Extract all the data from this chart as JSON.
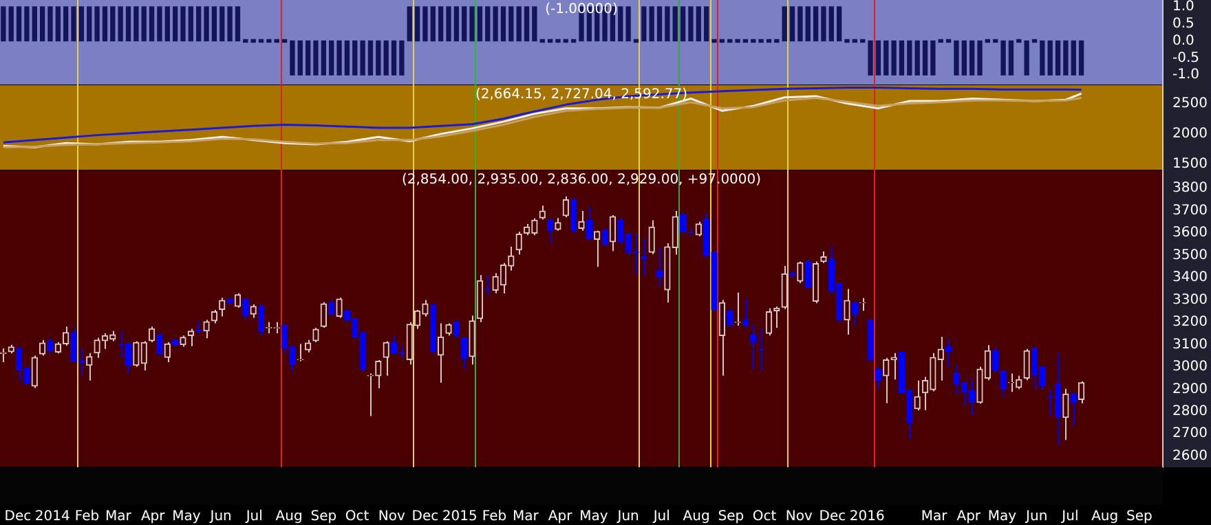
{
  "chart_data": [
    {
      "type": "bar",
      "title": "(-1.00000)",
      "color": "#14145a",
      "tick_labels": "y",
      "x": [
        "2013-11-18",
        "2013-11-25",
        "2013-12-02",
        "2013-12-09",
        "2013-12-16",
        "2013-12-23",
        "2013-12-30",
        "2014-01-06",
        "2014-01-13",
        "2014-01-20",
        "2014-01-27",
        "2014-02-03",
        "2014-02-10",
        "2014-02-17",
        "2014-02-24",
        "2014-03-03",
        "2014-03-10",
        "2014-03-17",
        "2014-03-24",
        "2014-03-31",
        "2014-04-07",
        "2014-04-14",
        "2014-04-21",
        "2014-04-28",
        "2014-05-05",
        "2014-05-12",
        "2014-05-19",
        "2014-05-26",
        "2014-06-02",
        "2014-06-09",
        "2014-06-16",
        "2014-06-23",
        "2014-06-30",
        "2014-07-07",
        "2014-07-14",
        "2014-07-21",
        "2014-07-28",
        "2014-08-04",
        "2014-08-11",
        "2014-08-18",
        "2014-08-25",
        "2014-09-01",
        "2014-09-08",
        "2014-09-15",
        "2014-09-22",
        "2014-09-29",
        "2014-10-06",
        "2014-10-13",
        "2014-10-20",
        "2014-10-27",
        "2014-11-03",
        "2014-11-10",
        "2014-11-17",
        "2014-11-24",
        "2014-12-01",
        "2014-12-08",
        "2014-12-15",
        "2014-12-22",
        "2014-12-29",
        "2015-01-05",
        "2015-01-12",
        "2015-01-19",
        "2015-01-26",
        "2015-02-02",
        "2015-02-09",
        "2015-02-16",
        "2015-02-23",
        "2015-03-02",
        "2015-03-09",
        "2015-03-16",
        "2015-03-23",
        "2015-03-30",
        "2015-04-06",
        "2015-04-13",
        "2015-04-20",
        "2015-04-27",
        "2015-05-04",
        "2015-05-11",
        "2015-05-18",
        "2015-05-25",
        "2015-06-01",
        "2015-06-08",
        "2015-06-15",
        "2015-06-22",
        "2015-06-29",
        "2015-07-06",
        "2015-07-13",
        "2015-07-20",
        "2015-07-27",
        "2015-08-03",
        "2015-08-10",
        "2015-08-17",
        "2015-08-24",
        "2015-08-31",
        "2015-09-07",
        "2015-09-14",
        "2015-09-21",
        "2015-09-28",
        "2015-10-05",
        "2015-10-12",
        "2015-10-19",
        "2015-10-26",
        "2015-11-02",
        "2015-11-09",
        "2015-11-16",
        "2015-11-23",
        "2015-11-30",
        "2015-12-07",
        "2015-12-14",
        "2015-12-21",
        "2015-12-28",
        "2016-01-04",
        "2016-01-11",
        "2016-01-18",
        "2016-01-25",
        "2016-02-01",
        "2016-02-08",
        "2016-02-15",
        "2016-02-22",
        "2016-02-29",
        "2016-03-07",
        "2016-03-14",
        "2016-03-21",
        "2016-03-28",
        "2016-04-04",
        "2016-04-11",
        "2016-04-18",
        "2016-04-25",
        "2016-05-02",
        "2016-05-09",
        "2016-05-16",
        "2016-05-23",
        "2016-05-30",
        "2016-06-06",
        "2016-06-13",
        "2016-06-20",
        "2016-06-27",
        "2016-07-04",
        "2016-07-11"
      ],
      "values": [
        1,
        1,
        1,
        1,
        1,
        1,
        1,
        1,
        1,
        1,
        1,
        1,
        1,
        1,
        1,
        1,
        1,
        1,
        1,
        1,
        1,
        1,
        1,
        1,
        1,
        1,
        1,
        1,
        1,
        1,
        1,
        0,
        0,
        0,
        0,
        0,
        0,
        -1,
        -1,
        -1,
        -1,
        -1,
        -1,
        -1,
        -1,
        -1,
        -1,
        -1,
        -1,
        -1,
        -1,
        -1,
        1,
        1,
        1,
        1,
        1,
        1,
        1,
        1,
        1,
        1,
        1,
        1,
        1,
        1,
        1,
        1,
        1,
        0,
        0,
        0,
        0,
        0,
        1,
        1,
        1,
        1,
        1,
        1,
        1,
        0,
        1,
        1,
        1,
        1,
        1,
        1,
        1,
        1,
        1,
        0,
        0,
        0,
        0,
        0,
        0,
        0,
        0,
        0,
        1,
        1,
        1,
        1,
        1,
        1,
        1,
        1,
        0,
        0,
        0,
        -1,
        -1,
        -1,
        -1,
        -1,
        -1,
        -1,
        -1,
        -1,
        0,
        0,
        -1,
        -1,
        -1,
        -1,
        0,
        0,
        -1,
        -1,
        0,
        -1,
        0,
        -1,
        -1,
        -1,
        -1,
        -1,
        -1
      ],
      "xlim": [
        "2013-11-15",
        "2016-09-22"
      ],
      "ylim": [
        -1.3,
        1.2
      ],
      "yticks": [
        {
          "value": 1,
          "label": "1.0"
        },
        {
          "value": 0.5,
          "label": "0.5"
        },
        {
          "value": 0,
          "label": "0.0"
        },
        {
          "value": -0.5,
          "label": "-0.5"
        },
        {
          "value": -1,
          "label": "-1.0"
        }
      ],
      "ref_lines": [
        {
          "axis": "x",
          "value": "2014-01-23",
          "color": "#e8d040"
        },
        {
          "axis": "x",
          "value": "2014-07-25",
          "color": "#e02020"
        },
        {
          "axis": "x",
          "value": "2014-11-20",
          "color": "#e8d040"
        },
        {
          "axis": "x",
          "value": "2015-01-15",
          "color": "#20c020"
        },
        {
          "axis": "x",
          "value": "2015-06-10",
          "color": "#e8d040"
        },
        {
          "axis": "x",
          "value": "2015-07-16",
          "color": "#40a040"
        },
        {
          "axis": "x",
          "value": "2015-08-13",
          "color": "#e8d040"
        },
        {
          "axis": "x",
          "value": "2015-08-19",
          "color": "#e02020"
        },
        {
          "axis": "x",
          "value": "2015-10-21",
          "color": "#e8d040"
        },
        {
          "axis": "x",
          "value": "2016-01-07",
          "color": "#e02020"
        }
      ]
    },
    {
      "type": "line",
      "title": "(2,664.15, 2,727.04, 2,592.77)",
      "tick_labels": "y",
      "x": [
        "2013-11-18",
        "2013-12-16",
        "2014-01-13",
        "2014-02-10",
        "2014-03-10",
        "2014-04-07",
        "2014-05-05",
        "2014-06-02",
        "2014-06-30",
        "2014-07-28",
        "2014-08-25",
        "2014-09-22",
        "2014-10-20",
        "2014-11-17",
        "2014-12-15",
        "2015-01-12",
        "2015-02-09",
        "2015-03-09",
        "2015-04-06",
        "2015-05-04",
        "2015-06-01",
        "2015-06-29",
        "2015-07-27",
        "2015-08-24",
        "2015-09-21",
        "2015-10-19",
        "2015-11-16",
        "2015-12-14",
        "2016-01-11",
        "2016-02-08",
        "2016-03-07",
        "2016-04-04",
        "2016-05-02",
        "2016-05-30",
        "2016-06-27",
        "2016-07-11"
      ],
      "series": [
        {
          "color": "#c8a060",
          "values": [
            1780,
            1790,
            1820,
            1830,
            1850,
            1860,
            1880,
            1920,
            1910,
            1870,
            1840,
            1850,
            1900,
            1900,
            1960,
            2050,
            2150,
            2280,
            2380,
            2410,
            2430,
            2430,
            2520,
            2420,
            2440,
            2550,
            2590,
            2530,
            2460,
            2500,
            2520,
            2550,
            2550,
            2540,
            2550,
            2592
          ]
        },
        {
          "color": "#f0f0f0",
          "values": [
            1800,
            1780,
            1850,
            1830,
            1870,
            1870,
            1900,
            1950,
            1900,
            1850,
            1830,
            1870,
            1950,
            1880,
            2000,
            2090,
            2200,
            2330,
            2420,
            2420,
            2440,
            2430,
            2580,
            2380,
            2460,
            2600,
            2620,
            2500,
            2420,
            2540,
            2540,
            2580,
            2560,
            2540,
            2560,
            2664
          ]
        },
        {
          "color": "#1a1adc",
          "values": [
            1860,
            1900,
            1940,
            1980,
            2010,
            2040,
            2070,
            2100,
            2130,
            2150,
            2140,
            2120,
            2100,
            2100,
            2130,
            2160,
            2250,
            2370,
            2480,
            2560,
            2620,
            2650,
            2680,
            2700,
            2720,
            2740,
            2750,
            2760,
            2760,
            2750,
            2740,
            2740,
            2730,
            2730,
            2730,
            2727
          ]
        }
      ],
      "xlim": [
        "2013-11-15",
        "2016-09-22"
      ],
      "ylim": [
        1400,
        2800
      ],
      "yticks": [
        1500,
        2000,
        2500
      ],
      "ref_lines": [
        {
          "axis": "x",
          "value": "2014-01-23",
          "color": "#e8d040"
        },
        {
          "axis": "x",
          "value": "2014-07-25",
          "color": "#e02020"
        },
        {
          "axis": "x",
          "value": "2014-11-20",
          "color": "#e8d040"
        },
        {
          "axis": "x",
          "value": "2015-01-15",
          "color": "#20c020"
        },
        {
          "axis": "x",
          "value": "2015-06-10",
          "color": "#e8d040"
        },
        {
          "axis": "x",
          "value": "2015-07-16",
          "color": "#40a040"
        },
        {
          "axis": "x",
          "value": "2015-08-13",
          "color": "#e8d040"
        },
        {
          "axis": "x",
          "value": "2015-08-19",
          "color": "#e02020"
        },
        {
          "axis": "x",
          "value": "2015-10-21",
          "color": "#e8d040"
        },
        {
          "axis": "x",
          "value": "2016-01-07",
          "color": "#e02020"
        }
      ]
    },
    {
      "type": "candlestick",
      "title": "(2,854.00, 2,935.00, 2,836.00, 2,929.00, +97.0000)",
      "colors": [
        "#d8c8c8",
        "#d8c8c8",
        "#0000ff",
        "#0000ff",
        "#d8c8c8",
        "#d8c8c8",
        "#0000ff",
        "#d8c8c8",
        "#d8c8c8",
        "#0000ff",
        "#0000ff",
        "#d8c8c8",
        "#d8c8c8",
        "#d8c8c8",
        "#d8c8c8",
        "#0000ff",
        "#0000ff",
        "#d8c8c8",
        "#d8c8c8",
        "#d8c8c8",
        "#0000ff",
        "#d8c8c8",
        "#0000ff",
        "#d8c8c8",
        "#d8c8c8",
        "#0000ff",
        "#d8c8c8",
        "#d8c8c8",
        "#d8c8c8",
        "#0000ff",
        "#d8c8c8",
        "#0000ff",
        "#d8c8c8",
        "#0000ff",
        "#d8c8c8",
        "#d8c8c8",
        "#0000ff",
        "#0000ff",
        "#d8c8c8",
        "#d8c8c8",
        "#d8c8c8",
        "#d8c8c8",
        "#0000ff",
        "#d8c8c8",
        "#0000ff",
        "#0000ff",
        "#0000ff",
        "#d8c8c8",
        "#d8c8c8",
        "#d8c8c8",
        "#0000ff",
        "#0000ff",
        "#d8c8c8",
        "#d8c8c8",
        "#d8c8c8",
        "#0000ff",
        "#d8c8c8",
        "#d8c8c8",
        "#0000ff",
        "#0000ff",
        "#d8c8c8",
        "#d8c8c8",
        "#0000ff",
        "#d8c8c8",
        "#d8c8c8",
        "#d8c8c8",
        "#d8c8c8",
        "#d8c8c8",
        "#d8c8c8",
        "#d8c8c8",
        "#0000ff",
        "#d8c8c8",
        "#d8c8c8",
        "#0000ff",
        "#d8c8c8",
        "#0000ff",
        "#d8c8c8",
        "#0000ff",
        "#d8c8c8",
        "#0000ff",
        "#0000ff",
        "#0000ff",
        "#0000ff",
        "#d8c8c8",
        "#0000ff",
        "#d8c8c8",
        "#d8c8c8",
        "#0000ff",
        "#0000ff",
        "#d8c8c8",
        "#0000ff",
        "#0000ff",
        "#d8c8c8",
        "#0000ff",
        "#d8c8c8",
        "#0000ff",
        "#0000ff",
        "#0000ff",
        "#d8c8c8",
        "#d8c8c8",
        "#d8c8c8",
        "#0000ff",
        "#d8c8c8",
        "#0000ff",
        "#d8c8c8",
        "#d8c8c8",
        "#0000ff",
        "#0000ff",
        "#d8c8c8",
        "#0000ff",
        "#d8c8c8",
        "#0000ff",
        "#0000ff",
        "#d8c8c8",
        "#d8c8c8",
        "#0000ff",
        "#0000ff",
        "#d8c8c8",
        "#d8c8c8",
        "#d8c8c8",
        "#d8c8c8",
        "#0000ff",
        "#0000ff",
        "#0000ff",
        "#0000ff",
        "#d8c8c8",
        "#d8c8c8",
        "#0000ff",
        "#0000ff",
        "#d8c8c8",
        "#d8c8c8",
        "#d8c8c8",
        "#0000ff",
        "#0000ff",
        "#0000ff",
        "#0000ff",
        "#d8c8c8",
        "#0000ff",
        "#d8c8c8"
      ],
      "x": [
        "2013-11-18",
        "2013-11-25",
        "2013-12-02",
        "2013-12-09",
        "2013-12-16",
        "2013-12-23",
        "2013-12-30",
        "2014-01-06",
        "2014-01-13",
        "2014-01-20",
        "2014-01-27",
        "2014-02-03",
        "2014-02-10",
        "2014-02-17",
        "2014-02-24",
        "2014-03-03",
        "2014-03-10",
        "2014-03-17",
        "2014-03-24",
        "2014-03-31",
        "2014-04-07",
        "2014-04-14",
        "2014-04-21",
        "2014-04-28",
        "2014-05-05",
        "2014-05-12",
        "2014-05-19",
        "2014-05-26",
        "2014-06-02",
        "2014-06-09",
        "2014-06-16",
        "2014-06-23",
        "2014-06-30",
        "2014-07-07",
        "2014-07-14",
        "2014-07-21",
        "2014-07-28",
        "2014-08-04",
        "2014-08-11",
        "2014-08-18",
        "2014-08-25",
        "2014-09-01",
        "2014-09-08",
        "2014-09-15",
        "2014-09-22",
        "2014-09-29",
        "2014-10-06",
        "2014-10-13",
        "2014-10-20",
        "2014-10-27",
        "2014-11-03",
        "2014-11-10",
        "2014-11-17",
        "2014-11-24",
        "2014-12-01",
        "2014-12-08",
        "2014-12-15",
        "2014-12-22",
        "2014-12-29",
        "2015-01-05",
        "2015-01-12",
        "2015-01-19",
        "2015-01-26",
        "2015-02-02",
        "2015-02-09",
        "2015-02-16",
        "2015-02-23",
        "2015-03-02",
        "2015-03-09",
        "2015-03-16",
        "2015-03-23",
        "2015-03-30",
        "2015-04-06",
        "2015-04-13",
        "2015-04-20",
        "2015-04-27",
        "2015-05-04",
        "2015-05-11",
        "2015-05-18",
        "2015-05-25",
        "2015-06-01",
        "2015-06-08",
        "2015-06-15",
        "2015-06-22",
        "2015-06-29",
        "2015-07-06",
        "2015-07-13",
        "2015-07-20",
        "2015-07-27",
        "2015-08-03",
        "2015-08-10",
        "2015-08-17",
        "2015-08-24",
        "2015-08-31",
        "2015-09-07",
        "2015-09-14",
        "2015-09-21",
        "2015-09-28",
        "2015-10-05",
        "2015-10-12",
        "2015-10-19",
        "2015-10-26",
        "2015-11-02",
        "2015-11-09",
        "2015-11-16",
        "2015-11-23",
        "2015-11-30",
        "2015-12-07",
        "2015-12-14",
        "2015-12-21",
        "2015-12-28",
        "2016-01-04",
        "2016-01-11",
        "2016-01-18",
        "2016-01-25",
        "2016-02-01",
        "2016-02-08",
        "2016-02-15",
        "2016-02-22",
        "2016-02-29",
        "2016-03-07",
        "2016-03-14",
        "2016-03-21",
        "2016-03-28",
        "2016-04-04",
        "2016-04-11",
        "2016-04-18",
        "2016-04-25",
        "2016-05-02",
        "2016-05-09",
        "2016-05-16",
        "2016-05-23",
        "2016-05-30",
        "2016-06-06",
        "2016-06-13",
        "2016-06-20",
        "2016-06-27",
        "2016-07-04",
        "2016-07-11"
      ],
      "ohlc": [
        [
          3060,
          3083,
          3021,
          3064
        ],
        [
          3068,
          3099,
          3060,
          3089
        ],
        [
          3083,
          3090,
          2939,
          2986
        ],
        [
          2996,
          3000,
          2920,
          2925
        ],
        [
          2914,
          3050,
          2905,
          3042
        ],
        [
          3058,
          3120,
          3050,
          3107
        ],
        [
          3117,
          3125,
          3060,
          3072
        ],
        [
          3066,
          3110,
          3060,
          3103
        ],
        [
          3103,
          3180,
          3095,
          3154
        ],
        [
          3154,
          3180,
          3020,
          3025
        ],
        [
          3025,
          3083,
          2965,
          3020
        ],
        [
          3007,
          3062,
          2939,
          3046
        ],
        [
          3062,
          3130,
          3040,
          3120
        ],
        [
          3117,
          3150,
          3080,
          3140
        ],
        [
          3124,
          3160,
          3115,
          3144
        ],
        [
          3100,
          3160,
          3040,
          3097
        ],
        [
          3103,
          3110,
          2970,
          3007
        ],
        [
          3007,
          3115,
          3000,
          3109
        ],
        [
          3015,
          3115,
          2984,
          3109
        ],
        [
          3117,
          3180,
          3110,
          3171
        ],
        [
          3144,
          3150,
          3050,
          3060
        ],
        [
          3042,
          3110,
          3021,
          3103
        ],
        [
          3120,
          3125,
          3090,
          3099
        ],
        [
          3099,
          3140,
          3090,
          3132
        ],
        [
          3140,
          3170,
          3093,
          3160
        ],
        [
          3165,
          3206,
          3150,
          3161
        ],
        [
          3161,
          3210,
          3128,
          3202
        ],
        [
          3206,
          3255,
          3195,
          3247
        ],
        [
          3257,
          3310,
          3226,
          3298
        ],
        [
          3304,
          3310,
          3280,
          3288
        ],
        [
          3271,
          3330,
          3265,
          3323
        ],
        [
          3302,
          3310,
          3212,
          3230
        ],
        [
          3236,
          3280,
          3220,
          3271
        ],
        [
          3273,
          3280,
          3140,
          3158
        ],
        [
          3175,
          3200,
          3150,
          3176
        ],
        [
          3174,
          3200,
          3150,
          3175
        ],
        [
          3185,
          3190,
          3060,
          3083
        ],
        [
          3089,
          3095,
          2980,
          3011
        ],
        [
          3032,
          3103,
          3025,
          3033
        ],
        [
          3076,
          3120,
          3065,
          3107
        ],
        [
          3117,
          3175,
          3110,
          3168
        ],
        [
          3181,
          3290,
          3175,
          3282
        ],
        [
          3288,
          3300,
          3230,
          3236
        ],
        [
          3226,
          3310,
          3220,
          3304
        ],
        [
          3251,
          3260,
          3200,
          3210
        ],
        [
          3216,
          3220,
          3125,
          3134
        ],
        [
          3154,
          3160,
          2980,
          2990
        ],
        [
          2960,
          2970,
          2779,
          2961
        ],
        [
          2960,
          3030,
          2904,
          3025
        ],
        [
          3042,
          3115,
          2960,
          3109
        ],
        [
          3109,
          3140,
          3055,
          3062
        ],
        [
          3062,
          3090,
          3040,
          3060
        ],
        [
          3032,
          3200,
          3010,
          3191
        ],
        [
          3185,
          3255,
          3170,
          3251
        ],
        [
          3236,
          3300,
          3225,
          3282
        ],
        [
          3277,
          3285,
          3060,
          3068
        ],
        [
          3052,
          3195,
          2929,
          3134
        ],
        [
          3150,
          3195,
          3140,
          3189
        ],
        [
          3202,
          3215,
          3130,
          3140
        ],
        [
          3128,
          3135,
          2990,
          3037
        ],
        [
          3046,
          3230,
          3010,
          3206
        ],
        [
          3216,
          3411,
          3200,
          3386
        ],
        [
          3350,
          3411,
          3318,
          3349
        ],
        [
          3343,
          3420,
          3330,
          3405
        ],
        [
          3366,
          3465,
          3329,
          3456
        ],
        [
          3452,
          3538,
          3431,
          3497
        ],
        [
          3524,
          3605,
          3503,
          3595
        ],
        [
          3599,
          3640,
          3590,
          3626
        ],
        [
          3599,
          3665,
          3590,
          3657
        ],
        [
          3667,
          3722,
          3660,
          3698
        ],
        [
          3657,
          3665,
          3554,
          3610
        ],
        [
          3616,
          3667,
          3610,
          3646
        ],
        [
          3677,
          3764,
          3670,
          3749
        ],
        [
          3749,
          3755,
          3600,
          3610
        ],
        [
          3620,
          3698,
          3610,
          3651
        ],
        [
          3657,
          3718,
          3570,
          3575
        ],
        [
          3571,
          3610,
          3448,
          3606
        ],
        [
          3612,
          3620,
          3540,
          3550
        ],
        [
          3560,
          3680,
          3519,
          3673
        ],
        [
          3657,
          3665,
          3550,
          3560
        ],
        [
          3595,
          3600,
          3500,
          3513
        ],
        [
          3514,
          3595,
          3415,
          3513
        ],
        [
          3493,
          3575,
          3411,
          3483
        ],
        [
          3513,
          3657,
          3505,
          3626
        ],
        [
          3431,
          3534,
          3360,
          3405
        ],
        [
          3345,
          3554,
          3288,
          3538
        ],
        [
          3534,
          3698,
          3503,
          3673
        ],
        [
          3681,
          3690,
          3600,
          3606
        ],
        [
          3601,
          3615,
          3590,
          3600
        ],
        [
          3591,
          3650,
          3585,
          3640
        ],
        [
          3661,
          3688,
          3490,
          3499
        ],
        [
          3513,
          3520,
          3250,
          3257
        ],
        [
          3140,
          3300,
          2960,
          3288
        ],
        [
          3251,
          3260,
          3180,
          3189
        ],
        [
          3199,
          3333,
          3185,
          3200
        ],
        [
          3212,
          3304,
          3175,
          3185
        ],
        [
          3144,
          3190,
          2990,
          3109
        ],
        [
          3077,
          3175,
          2980,
          3076
        ],
        [
          3150,
          3263,
          3140,
          3247
        ],
        [
          3251,
          3270,
          3175,
          3263
        ],
        [
          3267,
          3452,
          3260,
          3417
        ],
        [
          3421,
          3430,
          3400,
          3411
        ],
        [
          3384,
          3472,
          3375,
          3466
        ],
        [
          3472,
          3480,
          3350,
          3359
        ],
        [
          3294,
          3472,
          3285,
          3462
        ],
        [
          3472,
          3517,
          3465,
          3493
        ],
        [
          3483,
          3538,
          3330,
          3339
        ],
        [
          3374,
          3380,
          3200,
          3210
        ],
        [
          3210,
          3349,
          3144,
          3298
        ],
        [
          3288,
          3295,
          3185,
          3236
        ],
        [
          3287,
          3308,
          3251,
          3288
        ],
        [
          3210,
          3215,
          3025,
          3031
        ],
        [
          2990,
          3000,
          2904,
          2939
        ],
        [
          2960,
          3040,
          2837,
          3031
        ],
        [
          3032,
          3062,
          2943,
          3042
        ],
        [
          3066,
          3070,
          2880,
          2884
        ],
        [
          2894,
          2900,
          2679,
          2750
        ],
        [
          2812,
          2939,
          2805,
          2867
        ],
        [
          2884,
          2955,
          2806,
          2939
        ],
        [
          2898,
          3062,
          2890,
          3042
        ],
        [
          3032,
          3134,
          2939,
          3079
        ],
        [
          3091,
          3124,
          3000,
          3068
        ],
        [
          2970,
          3011,
          2877,
          2923
        ],
        [
          2929,
          2935,
          2826,
          2888
        ],
        [
          2894,
          2949,
          2785,
          2843
        ],
        [
          2841,
          3000,
          2835,
          2990
        ],
        [
          2949,
          3097,
          2940,
          3072
        ],
        [
          3072,
          3087,
          2975,
          2984
        ],
        [
          2980,
          2985,
          2867,
          2902
        ],
        [
          2929,
          2970,
          2888,
          2930
        ],
        [
          2908,
          2960,
          2900,
          2943
        ],
        [
          2949,
          3080,
          2940,
          3072
        ],
        [
          3083,
          3090,
          2898,
          2964
        ],
        [
          3000,
          3005,
          2900,
          2914
        ],
        [
          2867,
          2898,
          2785,
          2866
        ],
        [
          2923,
          3062,
          2652,
          2775
        ],
        [
          2773,
          2902,
          2672,
          2878
        ],
        [
          2878,
          2885,
          2738,
          2841
        ],
        [
          2854,
          2935,
          2836,
          2929
        ]
      ],
      "xlim": [
        "2013-11-15",
        "2016-09-22"
      ],
      "ylim": [
        2550,
        3880
      ],
      "yticks": [
        2600,
        2700,
        2800,
        2900,
        3000,
        3100,
        3200,
        3300,
        3400,
        3500,
        3600,
        3700,
        3800
      ],
      "xticks": [
        {
          "value": "2013-12-01",
          "label": "Dec"
        },
        {
          "value": "2014-01-01",
          "label": "2014"
        },
        {
          "value": "2014-02-01",
          "label": "Feb"
        },
        {
          "value": "2014-03-01",
          "label": "Mar"
        },
        {
          "value": "2014-04-01",
          "label": "Apr"
        },
        {
          "value": "2014-05-01",
          "label": "May"
        },
        {
          "value": "2014-06-01",
          "label": "Jun"
        },
        {
          "value": "2014-07-01",
          "label": "Jul"
        },
        {
          "value": "2014-08-01",
          "label": "Aug"
        },
        {
          "value": "2014-09-01",
          "label": "Sep"
        },
        {
          "value": "2014-10-01",
          "label": "Oct"
        },
        {
          "value": "2014-11-01",
          "label": "Nov"
        },
        {
          "value": "2014-12-01",
          "label": "Dec"
        },
        {
          "value": "2015-01-01",
          "label": "2015"
        },
        {
          "value": "2015-02-01",
          "label": "Feb"
        },
        {
          "value": "2015-03-01",
          "label": "Mar"
        },
        {
          "value": "2015-04-01",
          "label": "Apr"
        },
        {
          "value": "2015-05-01",
          "label": "May"
        },
        {
          "value": "2015-06-01",
          "label": "Jun"
        },
        {
          "value": "2015-07-01",
          "label": "Jul"
        },
        {
          "value": "2015-08-01",
          "label": "Aug"
        },
        {
          "value": "2015-09-01",
          "label": "Sep"
        },
        {
          "value": "2015-10-01",
          "label": "Oct"
        },
        {
          "value": "2015-11-01",
          "label": "Nov"
        },
        {
          "value": "2015-12-01",
          "label": "Dec"
        },
        {
          "value": "2016-01-01",
          "label": "2016"
        },
        {
          "value": "2016-03-01",
          "label": "Mar"
        },
        {
          "value": "2016-04-01",
          "label": "Apr"
        },
        {
          "value": "2016-05-01",
          "label": "May"
        },
        {
          "value": "2016-06-01",
          "label": "Jun"
        },
        {
          "value": "2016-07-01",
          "label": "Jul"
        },
        {
          "value": "2016-08-01",
          "label": "Aug"
        },
        {
          "value": "2016-09-01",
          "label": "Sep"
        }
      ],
      "ref_lines": [
        {
          "axis": "x",
          "value": "2014-01-23",
          "color": "#e8d040"
        },
        {
          "axis": "x",
          "value": "2014-07-25",
          "color": "#e02020"
        },
        {
          "axis": "x",
          "value": "2014-11-20",
          "color": "#e8d040"
        },
        {
          "axis": "x",
          "value": "2015-01-15",
          "color": "#20c020"
        },
        {
          "axis": "x",
          "value": "2015-06-10",
          "color": "#e8d040"
        },
        {
          "axis": "x",
          "value": "2015-07-16",
          "color": "#40a040"
        },
        {
          "axis": "x",
          "value": "2015-08-13",
          "color": "#e8d040"
        },
        {
          "axis": "x",
          "value": "2015-08-19",
          "color": "#e02020"
        },
        {
          "axis": "x",
          "value": "2015-10-21",
          "color": "#e8d040"
        },
        {
          "axis": "x",
          "value": "2016-01-07",
          "color": "#e02020"
        }
      ]
    }
  ]
}
